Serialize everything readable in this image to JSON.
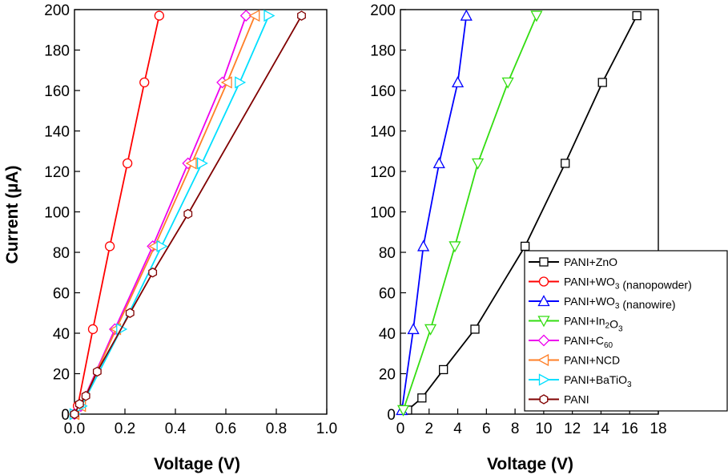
{
  "colors": {
    "PANI+ZnO": "#000000",
    "PANI+WO3 (nanopowder)": "#ff0000",
    "PANI+WO3 (nanowire)": "#0000ff",
    "PANI+In2O3": "#33dd11",
    "PANI+C60": "#ee00ee",
    "PANI+NCD": "#ff7f27",
    "PANI+BaTiO3": "#00dfff",
    "PANI": "#800000"
  },
  "chart_data": [
    {
      "type": "line",
      "xlabel": "Voltage (V)",
      "ylabel": "Current (µA)",
      "xlim": [
        0.0,
        1.0
      ],
      "ylim": [
        0,
        200
      ],
      "xticks": [
        "0.0",
        "0.2",
        "0.4",
        "0.6",
        "0.8",
        "1.0"
      ],
      "yticks": [
        "0",
        "20",
        "40",
        "60",
        "80",
        "100",
        "120",
        "140",
        "160",
        "180",
        "200"
      ],
      "series": [
        {
          "name": "PANI+WO3 (nanopowder)",
          "marker": "circle",
          "x": [
            0.0,
            0.013,
            0.073,
            0.14,
            0.21,
            0.277,
            0.336
          ],
          "y": [
            0,
            4,
            42,
            83,
            124,
            164,
            197
          ]
        },
        {
          "name": "PANI+C60",
          "marker": "diamond",
          "x": [
            0.0,
            0.025,
            0.16,
            0.31,
            0.45,
            0.586,
            0.68
          ],
          "y": [
            0,
            4,
            42,
            83,
            124,
            164,
            197
          ]
        },
        {
          "name": "PANI+NCD",
          "marker": "tri-left",
          "x": [
            0.0,
            0.026,
            0.165,
            0.318,
            0.465,
            0.605,
            0.715
          ],
          "y": [
            0,
            4,
            42,
            83,
            124,
            164,
            197
          ]
        },
        {
          "name": "PANI+BaTiO3",
          "marker": "tri-right",
          "x": [
            0.0,
            0.028,
            0.185,
            0.345,
            0.505,
            0.655,
            0.77
          ],
          "y": [
            0,
            4,
            42,
            83,
            124,
            164,
            197
          ]
        },
        {
          "name": "PANI",
          "marker": "hexagon",
          "x": [
            0.0,
            0.02,
            0.045,
            0.09,
            0.22,
            0.31,
            0.45,
            0.9
          ],
          "y": [
            0,
            5,
            9,
            21,
            50,
            70,
            99,
            197
          ]
        }
      ]
    },
    {
      "type": "line",
      "xlabel": "Voltage (V)",
      "ylabel": "",
      "xlim": [
        0,
        18
      ],
      "ylim": [
        0,
        200
      ],
      "xticks": [
        "0",
        "2",
        "4",
        "6",
        "8",
        "10",
        "12",
        "14",
        "16",
        "18"
      ],
      "yticks": [
        "0",
        "20",
        "40",
        "60",
        "80",
        "100",
        "120",
        "140",
        "160",
        "180",
        "200"
      ],
      "series": [
        {
          "name": "PANI+ZnO",
          "marker": "square",
          "x": [
            0.5,
            1.5,
            3.0,
            5.2,
            8.7,
            11.5,
            14.1,
            16.5
          ],
          "y": [
            2,
            8,
            22,
            42,
            83,
            124,
            164,
            197
          ]
        },
        {
          "name": "PANI+WO3 (nanowire)",
          "marker": "tri-up",
          "x": [
            0.1,
            0.9,
            1.6,
            2.7,
            4.0,
            4.6
          ],
          "y": [
            2,
            42,
            83,
            124,
            164,
            197
          ]
        },
        {
          "name": "PANI+In2O3",
          "marker": "tri-down",
          "x": [
            0.2,
            2.1,
            3.8,
            5.4,
            7.5,
            9.5
          ],
          "y": [
            2,
            42,
            83,
            124,
            164,
            197
          ]
        }
      ]
    }
  ],
  "legend": [
    {
      "name": "PANI+ZnO",
      "text": "PANI+ZnO",
      "marker": "square"
    },
    {
      "name": "PANI+WO3 (nanopowder)",
      "text": "PANI+WO3 (nanopowder)",
      "marker": "circle"
    },
    {
      "name": "PANI+WO3 (nanowire)",
      "text": "PANI+WO3 (nanowire)",
      "marker": "tri-up"
    },
    {
      "name": "PANI+In2O3",
      "text": "PANI+In2O3",
      "marker": "tri-down"
    },
    {
      "name": "PANI+C60",
      "text": "PANI+C60",
      "marker": "diamond"
    },
    {
      "name": "PANI+NCD",
      "text": "PANI+NCD",
      "marker": "tri-left"
    },
    {
      "name": "PANI+BaTiO3",
      "text": "PANI+BaTiO3",
      "marker": "tri-right"
    },
    {
      "name": "PANI",
      "text": "PANI",
      "marker": "hexagon"
    }
  ]
}
